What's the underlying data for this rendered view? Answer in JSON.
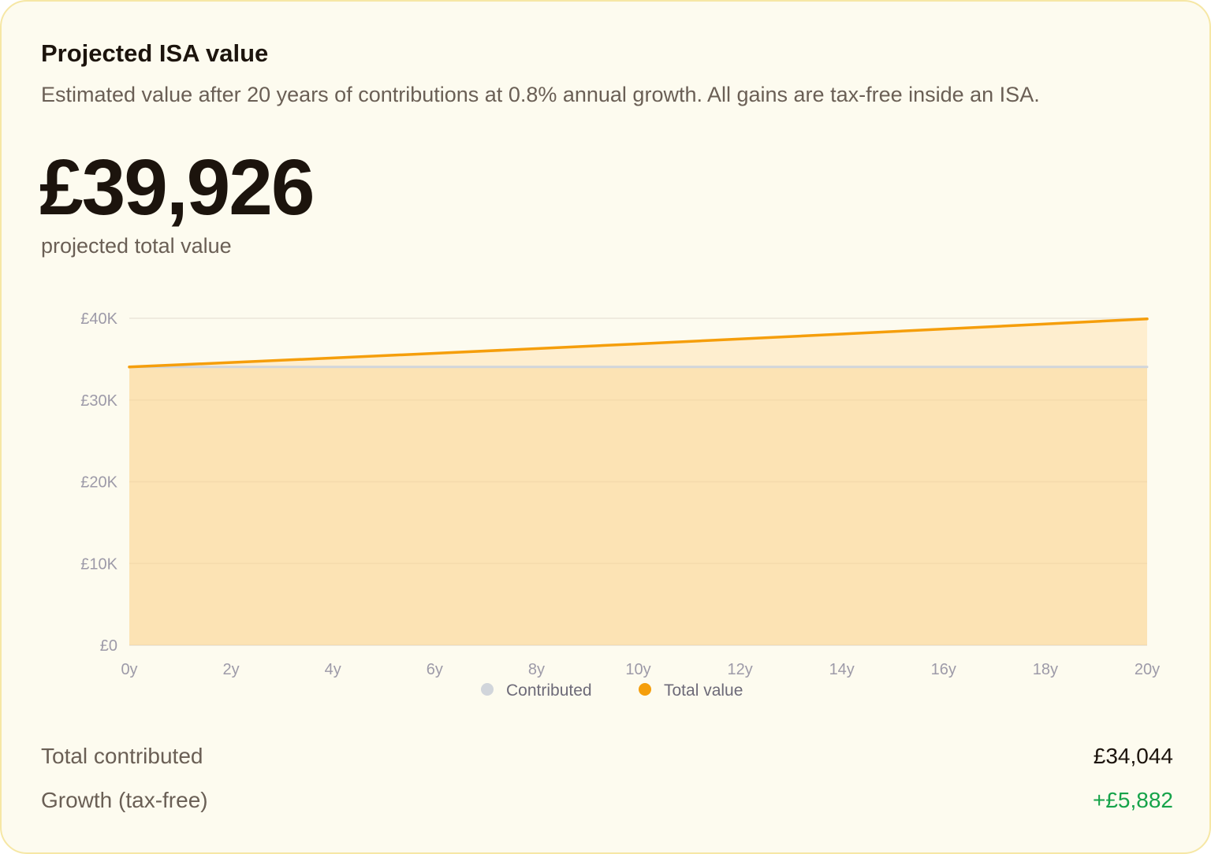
{
  "card": {
    "title": "Projected ISA value",
    "subtitle": "Estimated value after 20 years of contributions at 0.8% annual growth. All gains are tax-free inside an ISA.",
    "big_value": "£39,926",
    "big_caption": "projected total value"
  },
  "chart_data": {
    "type": "area",
    "title": "",
    "xlabel": "",
    "ylabel": "",
    "x": [
      0,
      2,
      4,
      6,
      8,
      10,
      12,
      14,
      16,
      18,
      20
    ],
    "x_tick_labels": [
      "0y",
      "2y",
      "4y",
      "6y",
      "8y",
      "10y",
      "12y",
      "14y",
      "16y",
      "18y",
      "20y"
    ],
    "y_ticks": [
      0,
      10000,
      20000,
      30000,
      40000
    ],
    "y_tick_labels": [
      "£0",
      "£10K",
      "£20K",
      "£30K",
      "£40K"
    ],
    "ylim": [
      0,
      40000
    ],
    "xlim": [
      0,
      20
    ],
    "grid": true,
    "legend_position": "bottom-center",
    "series": [
      {
        "name": "Contributed",
        "color": "#d1d5db",
        "values": [
          34044,
          34044,
          34044,
          34044,
          34044,
          34044,
          34044,
          34044,
          34044,
          34044,
          34044
        ]
      },
      {
        "name": "Total value",
        "color": "#f59e0b",
        "values": [
          34044,
          34590,
          35147,
          35713,
          36288,
          36873,
          37467,
          38071,
          38684,
          39301,
          39926
        ]
      }
    ]
  },
  "stats": {
    "contributed_label": "Total contributed",
    "contributed_value": "£34,044",
    "growth_label": "Growth (tax-free)",
    "growth_value": "+£5,882"
  },
  "colors": {
    "card_background": "#fdfbef",
    "card_border": "#f6e7a5",
    "accent": "#f59e0b",
    "positive": "#16a34a"
  }
}
